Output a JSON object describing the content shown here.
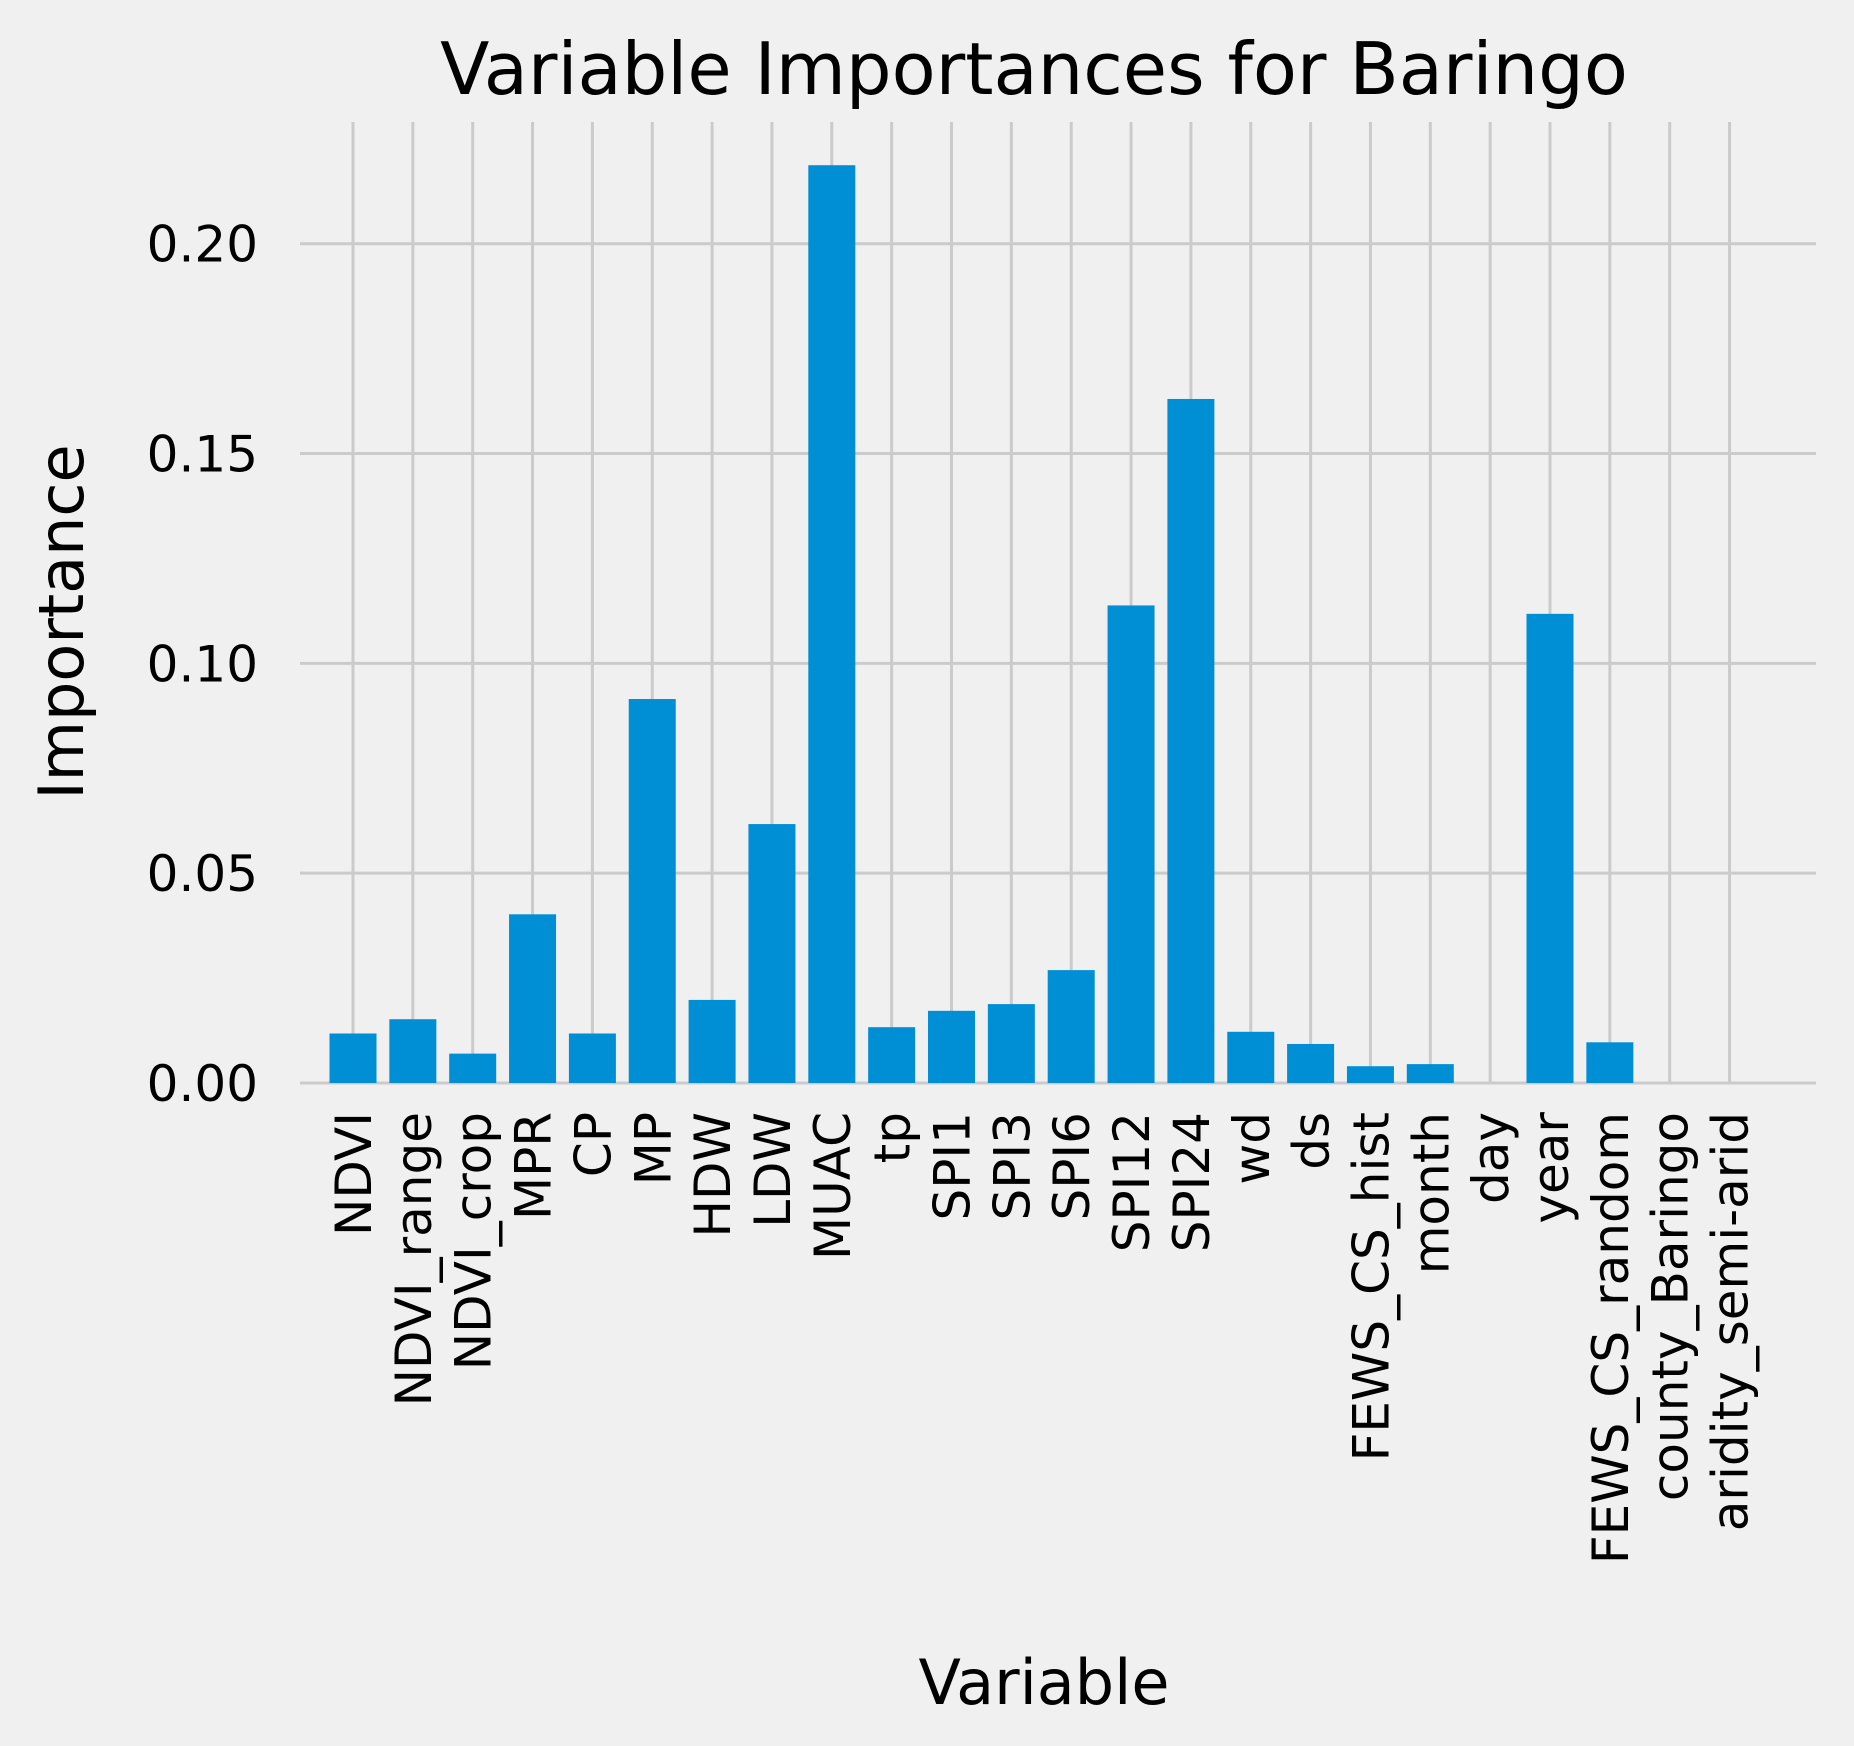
{
  "chart_data": {
    "type": "bar",
    "title": "Variable Importances for Baringo",
    "xlabel": "Variable",
    "ylabel": "Importance",
    "ylim": [
      0,
      0.229
    ],
    "yticks": [
      "0.00",
      "0.05",
      "0.10",
      "0.15",
      "0.20"
    ],
    "ytick_values": [
      0,
      0.05,
      0.1,
      0.15,
      0.2
    ],
    "grid": true,
    "bar_color": "#008fd5",
    "background": "#f0f0f0",
    "grid_color": "#cbcbcb",
    "categories": [
      "NDVI",
      "NDVI_range",
      "NDVI_crop",
      "MPR",
      "CP",
      "MP",
      "HDW",
      "LDW",
      "MUAC",
      "tp",
      "SPI1",
      "SPI3",
      "SPI6",
      "SPI12",
      "SPI24",
      "wd",
      "ds",
      "FEWS_CS_hist",
      "month",
      "day",
      "year",
      "FEWS_CS_random",
      "county_Baringo",
      "aridity_semi-arid"
    ],
    "values": [
      0.0118,
      0.0152,
      0.007,
      0.0402,
      0.0118,
      0.0915,
      0.0198,
      0.0617,
      0.2187,
      0.0133,
      0.0172,
      0.0188,
      0.0269,
      0.1138,
      0.163,
      0.0122,
      0.0093,
      0.004,
      0.0045,
      0.0,
      0.1118,
      0.0097,
      0.0,
      0.0
    ]
  }
}
